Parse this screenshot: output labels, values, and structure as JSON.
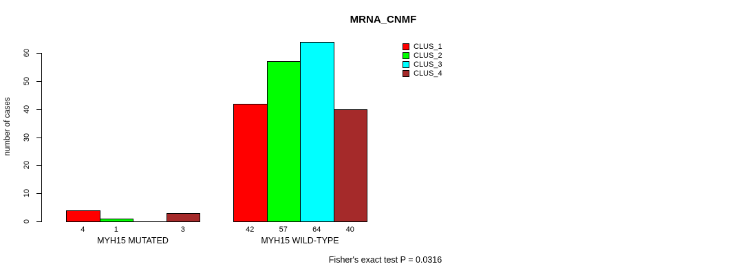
{
  "page": {
    "background_color": "#ffffff",
    "text_color": "#000000"
  },
  "chart_data": {
    "type": "bar",
    "title": "MRNA_CNMF",
    "ylabel": "number of cases",
    "xlabel": "",
    "categories": [
      "MYH15 MUTATED",
      "MYH15 WILD-TYPE"
    ],
    "series": [
      {
        "name": "CLUS_1",
        "color": "#FF0000",
        "values": [
          4,
          42
        ]
      },
      {
        "name": "CLUS_2",
        "color": "#00FF00",
        "values": [
          1,
          57
        ]
      },
      {
        "name": "CLUS_3",
        "color": "#00FFFF",
        "values": [
          0,
          64
        ]
      },
      {
        "name": "CLUS_4",
        "color": "#A52A2A",
        "values": [
          3,
          40
        ]
      }
    ],
    "bar_value_labels": [
      [
        "4",
        "1",
        "",
        "3"
      ],
      [
        "42",
        "57",
        "64",
        "40"
      ]
    ],
    "yticks": [
      0,
      10,
      20,
      30,
      40,
      50,
      60
    ],
    "ylim": [
      0,
      64
    ],
    "grid": false,
    "legend_position": "top-right",
    "bar_border_color": "#000000",
    "annotation": "Fisher's exact test P = 0.0316"
  }
}
